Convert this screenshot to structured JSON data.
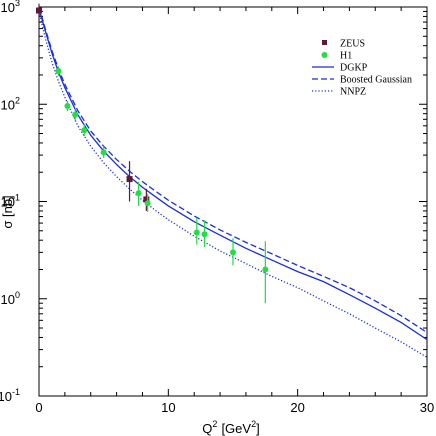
{
  "chart_data": {
    "type": "scatter",
    "title": "",
    "xlabel": {
      "main": "Q",
      "sup": "2",
      "unit_pre": "[GeV",
      "unit_sup": "2",
      "unit_post": "]"
    },
    "ylabel": "σ [nb]",
    "xlim": [
      0,
      30
    ],
    "ylim": [
      0.1,
      1000
    ],
    "y_scale": "log",
    "grid": false,
    "legend_position": "top-right",
    "x_ticks": [
      0,
      10,
      20,
      30
    ],
    "y_ticks": [
      {
        "value": 0.1,
        "base": "10",
        "exp": "-1"
      },
      {
        "value": 1,
        "base": "10",
        "exp": "0"
      },
      {
        "value": 10,
        "base": "10",
        "exp": "1"
      },
      {
        "value": 100,
        "base": "10",
        "exp": "2"
      },
      {
        "value": 1000,
        "base": "10",
        "exp": "3"
      }
    ],
    "series": [
      {
        "name": "ZEUS",
        "kind": "points",
        "marker": "square",
        "color": "#5a1a3a",
        "error_color": "#5a1a3a",
        "points": [
          {
            "x": 0.0,
            "y": 920,
            "ylo": 780,
            "yhi": 1080
          },
          {
            "x": 7.0,
            "y": 17,
            "ylo": 10,
            "yhi": 26
          },
          {
            "x": 8.3,
            "y": 10.5,
            "ylo": 8.0,
            "yhi": 13.5
          }
        ]
      },
      {
        "name": "H1",
        "kind": "points",
        "marker": "circle",
        "color": "#22dd44",
        "error_color": "#22dd44",
        "points": [
          {
            "x": 1.5,
            "y": 220,
            "ylo": 195,
            "yhi": 245
          },
          {
            "x": 2.2,
            "y": 96,
            "ylo": 85,
            "yhi": 108
          },
          {
            "x": 2.8,
            "y": 78,
            "ylo": 68,
            "yhi": 89
          },
          {
            "x": 3.5,
            "y": 54,
            "ylo": 47,
            "yhi": 62
          },
          {
            "x": 5.0,
            "y": 32,
            "ylo": 28,
            "yhi": 37
          },
          {
            "x": 7.7,
            "y": 12.2,
            "ylo": 9.0,
            "yhi": 16
          },
          {
            "x": 8.4,
            "y": 9.6,
            "ylo": 7.8,
            "yhi": 12
          },
          {
            "x": 12.2,
            "y": 4.8,
            "ylo": 3.6,
            "yhi": 6.8
          },
          {
            "x": 12.8,
            "y": 4.6,
            "ylo": 3.4,
            "yhi": 6.4
          },
          {
            "x": 15.0,
            "y": 3.0,
            "ylo": 2.2,
            "yhi": 4.2
          },
          {
            "x": 17.5,
            "y": 2.0,
            "ylo": 0.9,
            "yhi": 3.9
          }
        ]
      },
      {
        "name": "DGKP",
        "kind": "line",
        "style": "solid",
        "color": "#1a2fd8",
        "x": [
          0,
          0.5,
          1,
          1.5,
          2,
          3,
          4,
          5,
          6,
          7,
          8,
          9,
          10,
          12,
          14,
          16,
          18,
          20,
          22,
          24,
          26,
          28,
          30
        ],
        "y": [
          960,
          560,
          335,
          215,
          148,
          78,
          48,
          33,
          24,
          18,
          14,
          11.2,
          9.0,
          6.2,
          4.5,
          3.3,
          2.5,
          1.9,
          1.5,
          1.1,
          0.8,
          0.57,
          0.38
        ]
      },
      {
        "name": "Boosted Gaussian",
        "kind": "line",
        "style": "dashed",
        "color": "#1a2fd8",
        "x": [
          0,
          0.5,
          1,
          1.5,
          2,
          3,
          4,
          5,
          6,
          7,
          8,
          9,
          10,
          12,
          14,
          16,
          18,
          20,
          22,
          24,
          26,
          28,
          30
        ],
        "y": [
          1000,
          590,
          355,
          232,
          160,
          86,
          53,
          37,
          27,
          20.5,
          16,
          12.8,
          10.3,
          7.1,
          5.1,
          3.8,
          2.9,
          2.2,
          1.7,
          1.3,
          0.95,
          0.67,
          0.45
        ]
      },
      {
        "name": "NNPZ",
        "kind": "line",
        "style": "dotted",
        "color": "#1a2fd8",
        "x": [
          0,
          0.5,
          1,
          1.5,
          2,
          3,
          4,
          5,
          6,
          7,
          8,
          9,
          10,
          12,
          14,
          16,
          18,
          20,
          22,
          24,
          26,
          28,
          30
        ],
        "y": [
          900,
          470,
          270,
          172,
          118,
          60,
          37,
          25,
          18,
          13.5,
          10.3,
          8.1,
          6.5,
          4.4,
          3.1,
          2.3,
          1.7,
          1.3,
          0.95,
          0.7,
          0.5,
          0.36,
          0.25
        ]
      }
    ]
  }
}
